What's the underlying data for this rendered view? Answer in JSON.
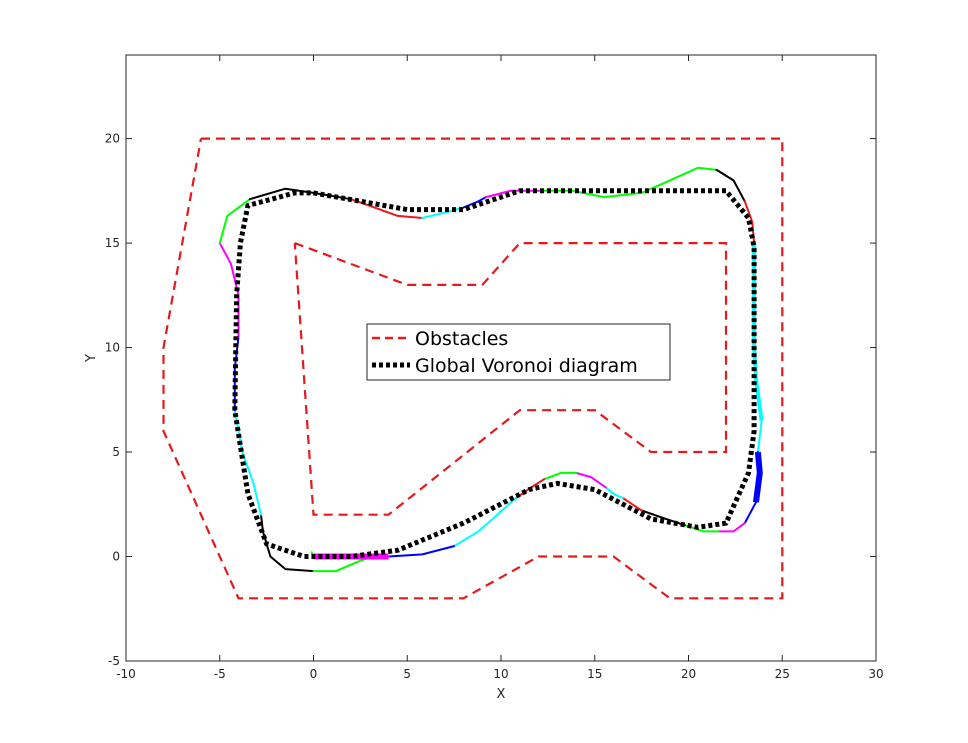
{
  "chart_data": {
    "type": "line",
    "title": "",
    "xlabel": "X",
    "ylabel": "Y",
    "xlim": [
      -10,
      30
    ],
    "ylim": [
      -5,
      24
    ],
    "xticks": [
      -10,
      -5,
      0,
      5,
      10,
      15,
      20,
      25,
      30
    ],
    "yticks": [
      -5,
      0,
      5,
      10,
      15,
      20
    ],
    "grid": false,
    "legend_position": "center",
    "legend": [
      "Obstacles",
      "Global Voronoi diagram"
    ],
    "obstacles": {
      "name": "Obstacles",
      "color": "#e41a1c",
      "style": "dashed",
      "outer": [
        [
          -6,
          20
        ],
        [
          25,
          20
        ],
        [
          25,
          -2
        ],
        [
          19,
          -2
        ],
        [
          16,
          0
        ],
        [
          12,
          0
        ],
        [
          8,
          -2
        ],
        [
          -4,
          -2
        ],
        [
          -8,
          6
        ],
        [
          -8,
          10
        ],
        [
          -6,
          20
        ]
      ],
      "inner": [
        [
          -1,
          15
        ],
        [
          5,
          13
        ],
        [
          9,
          13
        ],
        [
          11,
          15
        ],
        [
          22,
          15
        ],
        [
          22,
          5
        ],
        [
          18,
          5
        ],
        [
          15,
          7
        ],
        [
          11,
          7
        ],
        [
          4,
          2
        ],
        [
          0,
          2
        ],
        [
          -1,
          15
        ]
      ]
    },
    "voronoi": {
      "name": "Global Voronoi diagram",
      "color": "#000000",
      "style": "dotted",
      "points": [
        [
          0,
          17.4
        ],
        [
          5,
          16.6
        ],
        [
          8,
          16.6
        ],
        [
          11,
          17.5
        ],
        [
          22,
          17.5
        ],
        [
          23.2,
          16.2
        ],
        [
          23.5,
          14.8
        ],
        [
          23.5,
          6
        ],
        [
          23.2,
          4
        ],
        [
          22,
          1.6
        ],
        [
          20.5,
          1.4
        ],
        [
          18,
          1.8
        ],
        [
          15,
          3.2
        ],
        [
          13,
          3.5
        ],
        [
          11.5,
          3.2
        ],
        [
          8,
          1.6
        ],
        [
          4.5,
          0.3
        ],
        [
          2,
          0
        ],
        [
          -0.5,
          0
        ],
        [
          -2.5,
          0.6
        ],
        [
          -3.5,
          3
        ],
        [
          -4.2,
          7
        ],
        [
          -4.1,
          12.5
        ],
        [
          -3.9,
          15
        ],
        [
          -3.5,
          16.8
        ],
        [
          -1,
          17.4
        ],
        [
          0,
          17.4
        ]
      ]
    },
    "trajectory": {
      "segments": [
        {
          "color": "#000000",
          "points": [
            [
              0,
              -0.7
            ],
            [
              -1.5,
              -0.6
            ],
            [
              -2.3,
              0
            ],
            [
              -2.7,
              1.2
            ],
            [
              -2.8,
              2.0
            ]
          ]
        },
        {
          "color": "#00ffff",
          "points": [
            [
              -2.8,
              2.0
            ],
            [
              -3.2,
              3.5
            ],
            [
              -3.8,
              5
            ],
            [
              -4.2,
              7
            ]
          ]
        },
        {
          "color": "#0000ff",
          "points": [
            [
              -4.2,
              7
            ],
            [
              -4.2,
              9
            ],
            [
              -4.0,
              10.5
            ]
          ]
        },
        {
          "color": "#ff00ff",
          "points": [
            [
              -4.0,
              10.5
            ],
            [
              -4.0,
              12.5
            ],
            [
              -4.4,
              14
            ],
            [
              -5.0,
              15.0
            ]
          ]
        },
        {
          "color": "#00ff00",
          "points": [
            [
              -5.0,
              15.0
            ],
            [
              -4.6,
              16.3
            ],
            [
              -3.4,
              17.1
            ]
          ]
        },
        {
          "color": "#000000",
          "points": [
            [
              -3.4,
              17.1
            ],
            [
              -1.5,
              17.6
            ],
            [
              0,
              17.4
            ],
            [
              2,
              17.1
            ]
          ]
        },
        {
          "color": "#e41a1c",
          "points": [
            [
              2,
              17.1
            ],
            [
              4.5,
              16.3
            ],
            [
              5.8,
              16.2
            ]
          ]
        },
        {
          "color": "#00ffff",
          "points": [
            [
              5.8,
              16.2
            ],
            [
              7.2,
              16.5
            ],
            [
              8,
              16.7
            ]
          ]
        },
        {
          "color": "#0000ff",
          "points": [
            [
              8,
              16.7
            ],
            [
              8.8,
              17.0
            ],
            [
              9.2,
              17.2
            ]
          ]
        },
        {
          "color": "#ff00ff",
          "points": [
            [
              9.2,
              17.2
            ],
            [
              10.5,
              17.5
            ],
            [
              12.2,
              17.5
            ]
          ]
        },
        {
          "color": "#00ff00",
          "points": [
            [
              12.2,
              17.5
            ],
            [
              13.8,
              17.5
            ],
            [
              15.5,
              17.2
            ],
            [
              17.5,
              17.4
            ],
            [
              19,
              18.0
            ],
            [
              20.5,
              18.6
            ],
            [
              21.5,
              18.5
            ]
          ]
        },
        {
          "color": "#000000",
          "points": [
            [
              21.5,
              18.5
            ],
            [
              22.4,
              18.0
            ],
            [
              23.0,
              17.0
            ]
          ]
        },
        {
          "color": "#e41a1c",
          "points": [
            [
              23.0,
              17.0
            ],
            [
              23.4,
              16.0
            ],
            [
              23.5,
              15.0
            ]
          ]
        },
        {
          "color": "#00ffff",
          "points": [
            [
              23.5,
              15.0
            ],
            [
              23.5,
              10
            ],
            [
              23.6,
              8.5
            ],
            [
              23.9,
              6.5
            ],
            [
              23.7,
              5.0
            ]
          ]
        },
        {
          "color": "#0000ff",
          "points": [
            [
              23.7,
              5.0
            ],
            [
              23.8,
              4.0
            ],
            [
              23.6,
              2.6
            ],
            [
              23.0,
              1.6
            ]
          ]
        },
        {
          "color": "#ff00ff",
          "points": [
            [
              23.0,
              1.6
            ],
            [
              22.4,
              1.2
            ],
            [
              21.6,
              1.2
            ]
          ]
        },
        {
          "color": "#00ff00",
          "points": [
            [
              21.6,
              1.2
            ],
            [
              20.8,
              1.2
            ],
            [
              19.8,
              1.5
            ]
          ]
        },
        {
          "color": "#000000",
          "points": [
            [
              19.8,
              1.5
            ],
            [
              18.8,
              1.8
            ],
            [
              17.5,
              2.2
            ]
          ]
        },
        {
          "color": "#e41a1c",
          "points": [
            [
              17.5,
              2.2
            ],
            [
              17.0,
              2.5
            ],
            [
              16.5,
              2.8
            ]
          ]
        },
        {
          "color": "#00ffff",
          "points": [
            [
              16.5,
              2.8
            ],
            [
              16.0,
              3.0
            ],
            [
              15.6,
              3.3
            ]
          ]
        },
        {
          "color": "#ff00ff",
          "points": [
            [
              15.6,
              3.3
            ],
            [
              14.8,
              3.8
            ],
            [
              14.0,
              4.0
            ]
          ]
        },
        {
          "color": "#00ff00",
          "points": [
            [
              14.0,
              4.0
            ],
            [
              13.2,
              4.0
            ],
            [
              12.3,
              3.7
            ]
          ]
        },
        {
          "color": "#e41a1c",
          "points": [
            [
              12.3,
              3.7
            ],
            [
              11.6,
              3.3
            ],
            [
              10.8,
              2.8
            ]
          ]
        },
        {
          "color": "#00ffff",
          "points": [
            [
              10.8,
              2.8
            ],
            [
              9.8,
              2.0
            ],
            [
              8.8,
              1.2
            ],
            [
              7.5,
              0.5
            ]
          ]
        },
        {
          "color": "#0000ff",
          "points": [
            [
              7.5,
              0.5
            ],
            [
              5.8,
              0.1
            ],
            [
              4.0,
              0
            ]
          ]
        },
        {
          "color": "#ff00ff",
          "points": [
            [
              4.0,
              0
            ],
            [
              2.0,
              0
            ],
            [
              0,
              0
            ]
          ]
        },
        {
          "color": "#00ff00",
          "points": [
            [
              0,
              0
            ],
            [
              -0.1,
              0.2
            ]
          ]
        },
        {
          "color": "#00ff00",
          "points": [
            [
              0,
              -0.7
            ],
            [
              1.2,
              -0.7
            ],
            [
              2.5,
              -0.2
            ],
            [
              3.5,
              0.1
            ]
          ]
        }
      ]
    }
  }
}
